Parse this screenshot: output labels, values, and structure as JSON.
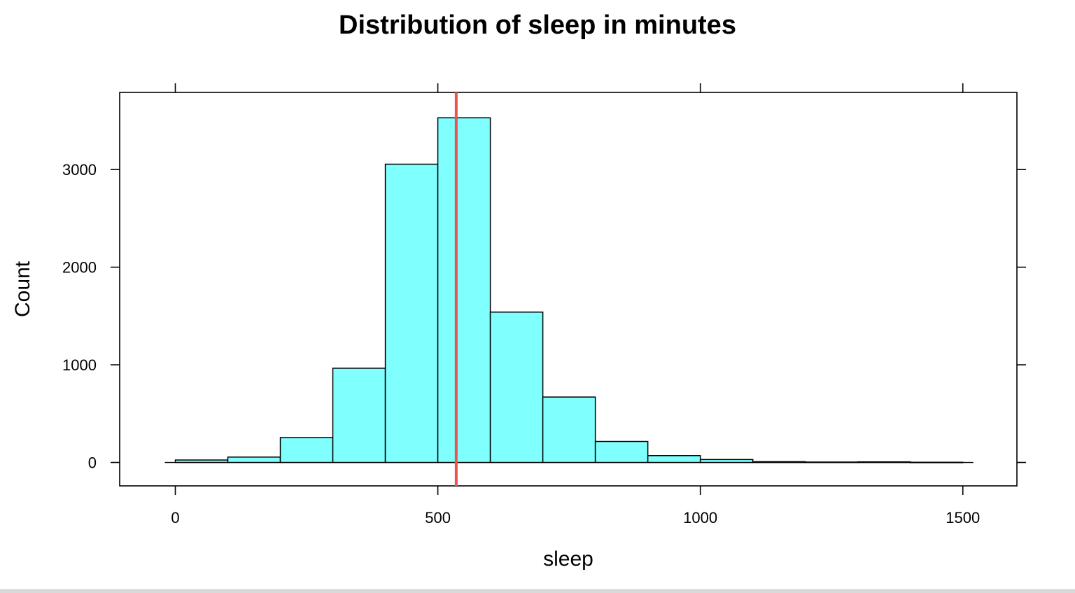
{
  "chart_data": {
    "type": "bar",
    "title": "Distribution of sleep in minutes",
    "xlabel": "sleep",
    "ylabel": "Count",
    "xlim": [
      -106,
      1603
    ],
    "ylim": [
      -240,
      3790
    ],
    "x_ticks": [
      0,
      500,
      1000,
      1500
    ],
    "x_tick_labels": [
      "0",
      "500",
      "1000",
      "1500"
    ],
    "y_ticks": [
      0,
      1000,
      2000,
      3000
    ],
    "y_tick_labels": [
      "0",
      "1000",
      "2000",
      "3000"
    ],
    "bin_width": 100,
    "bins": [
      {
        "start": 0,
        "end": 100,
        "count": 25
      },
      {
        "start": 100,
        "end": 200,
        "count": 55
      },
      {
        "start": 200,
        "end": 300,
        "count": 255
      },
      {
        "start": 300,
        "end": 400,
        "count": 965
      },
      {
        "start": 400,
        "end": 500,
        "count": 3055
      },
      {
        "start": 500,
        "end": 600,
        "count": 3530
      },
      {
        "start": 600,
        "end": 700,
        "count": 1540
      },
      {
        "start": 700,
        "end": 800,
        "count": 670
      },
      {
        "start": 800,
        "end": 900,
        "count": 215
      },
      {
        "start": 900,
        "end": 1000,
        "count": 70
      },
      {
        "start": 1000,
        "end": 1100,
        "count": 30
      },
      {
        "start": 1100,
        "end": 1200,
        "count": 8
      },
      {
        "start": 1200,
        "end": 1300,
        "count": 4
      },
      {
        "start": 1300,
        "end": 1400,
        "count": 6
      },
      {
        "start": 1400,
        "end": 1500,
        "count": 2
      }
    ],
    "baseline_range": [
      -20,
      1520
    ],
    "reference_line": {
      "x": 535,
      "color": "#e8554e"
    },
    "bar_fill": "#80ffff",
    "bar_stroke": "#000000",
    "grid": false,
    "legend": "none"
  }
}
